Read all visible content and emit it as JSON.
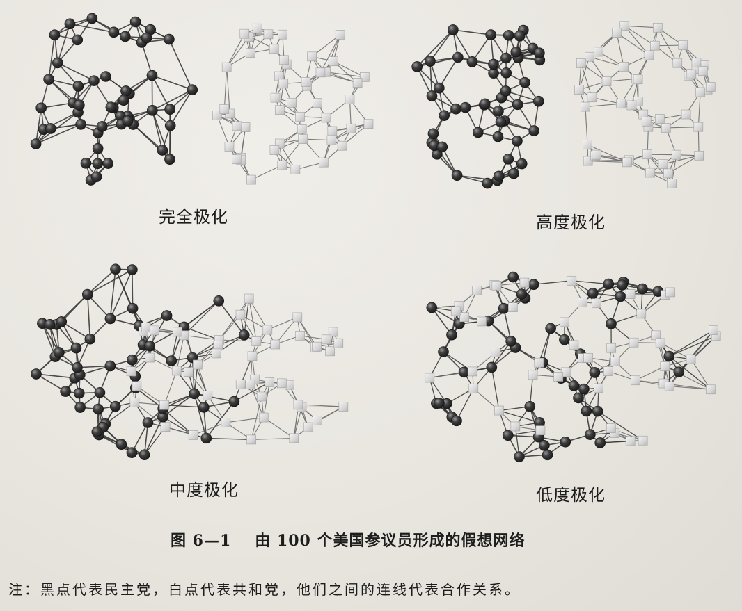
{
  "panels": [
    {
      "id": "complete",
      "label": "完全极化",
      "polarization": "complete"
    },
    {
      "id": "high",
      "label": "高度极化",
      "polarization": "high"
    },
    {
      "id": "medium",
      "label": "中度极化",
      "polarization": "medium"
    },
    {
      "id": "low",
      "label": "低度极化",
      "polarization": "low"
    }
  ],
  "caption": {
    "number": "图 6—1",
    "title": "由 100 个美国参议员形成的假想网络"
  },
  "note": "注：黑点代表民主党，白点代表共和党，他们之间的连线代表合作关系。",
  "legend": {
    "dark_node_meaning": "民主党",
    "light_node_meaning": "共和党",
    "edge_meaning": "合作关系"
  },
  "colors": {
    "background": "#ebe8e2",
    "dark_node": "#3d3d3d",
    "light_node": "#d6d6d6",
    "edge": "#3a3a3a"
  },
  "icons": {
    "dark_node": "sphere",
    "light_node": "cube"
  }
}
